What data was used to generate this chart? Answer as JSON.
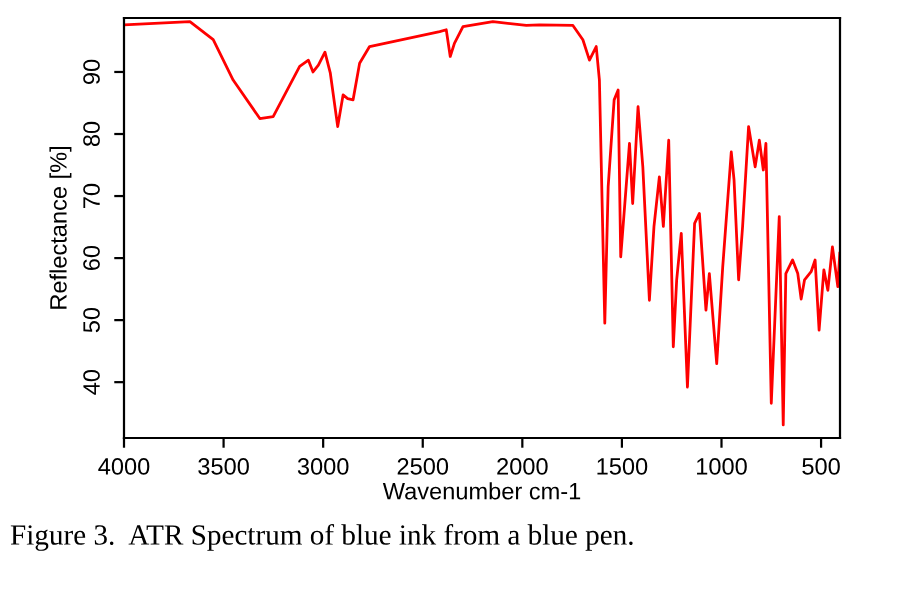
{
  "chart_data": {
    "type": "line",
    "xlabel": "Wavenumber cm-1",
    "ylabel": "Reflectance [%]",
    "annotations": [
      "Figure 3.  ATR Spectrum of blue ink from a blue pen."
    ],
    "x": [
      4000,
      3669,
      3552,
      3452,
      3318,
      3251,
      3118,
      3074,
      3051,
      3024,
      2991,
      2964,
      2927,
      2900,
      2877,
      2850,
      2817,
      2767,
      2415,
      2382,
      2362,
      2341,
      2298,
      2148,
      1980,
      1914,
      1746,
      1696,
      1663,
      1629,
      1613,
      1586,
      1569,
      1539,
      1519,
      1506,
      1462,
      1446,
      1419,
      1395,
      1362,
      1339,
      1312,
      1292,
      1265,
      1242,
      1225,
      1202,
      1171,
      1135,
      1111,
      1078,
      1061,
      1024,
      994,
      951,
      937,
      914,
      894,
      864,
      831,
      810,
      790,
      777,
      750,
      710,
      690,
      677,
      643,
      617,
      600,
      583,
      550,
      530,
      510,
      486,
      466,
      443,
      416,
      406
    ],
    "series": [
      {
        "color": "#ff0000",
        "values": [
          97.6,
          98.1,
          95.2,
          88.7,
          82.5,
          82.8,
          90.9,
          91.9,
          90,
          91.1,
          93.2,
          89.8,
          81.2,
          86.3,
          85.7,
          85.5,
          91.4,
          94.1,
          96.5,
          96.8,
          92.5,
          94.6,
          97.3,
          98.1,
          97.5,
          97.6,
          97.5,
          95.2,
          91.9,
          94.1,
          88.7,
          49.5,
          71.5,
          85.5,
          87.1,
          60.2,
          78.5,
          68.8,
          84.4,
          74.7,
          53.2,
          65.1,
          73.1,
          65.1,
          79,
          45.7,
          56.5,
          64,
          39.2,
          65.6,
          67.2,
          51.6,
          57.5,
          43,
          58.5,
          77.1,
          72.6,
          56.5,
          65.1,
          81.2,
          74.7,
          79,
          74.2,
          78.5,
          36.6,
          66.7,
          33.1,
          57.5,
          59.7,
          57.5,
          53.4,
          56.5,
          57.8,
          59.7,
          48.4,
          58.1,
          54.8,
          61.8,
          55.4,
          60.8
        ]
      }
    ],
    "xlim": [
      4000,
      405
    ],
    "ylim": [
      31,
      98.7
    ],
    "xticks": [
      4000,
      3500,
      3000,
      2500,
      2000,
      1500,
      1000,
      500
    ],
    "yticks": [
      40,
      50,
      60,
      70,
      80,
      90
    ],
    "grid": false,
    "legend": false,
    "marker": "none",
    "line_style": "solid"
  }
}
